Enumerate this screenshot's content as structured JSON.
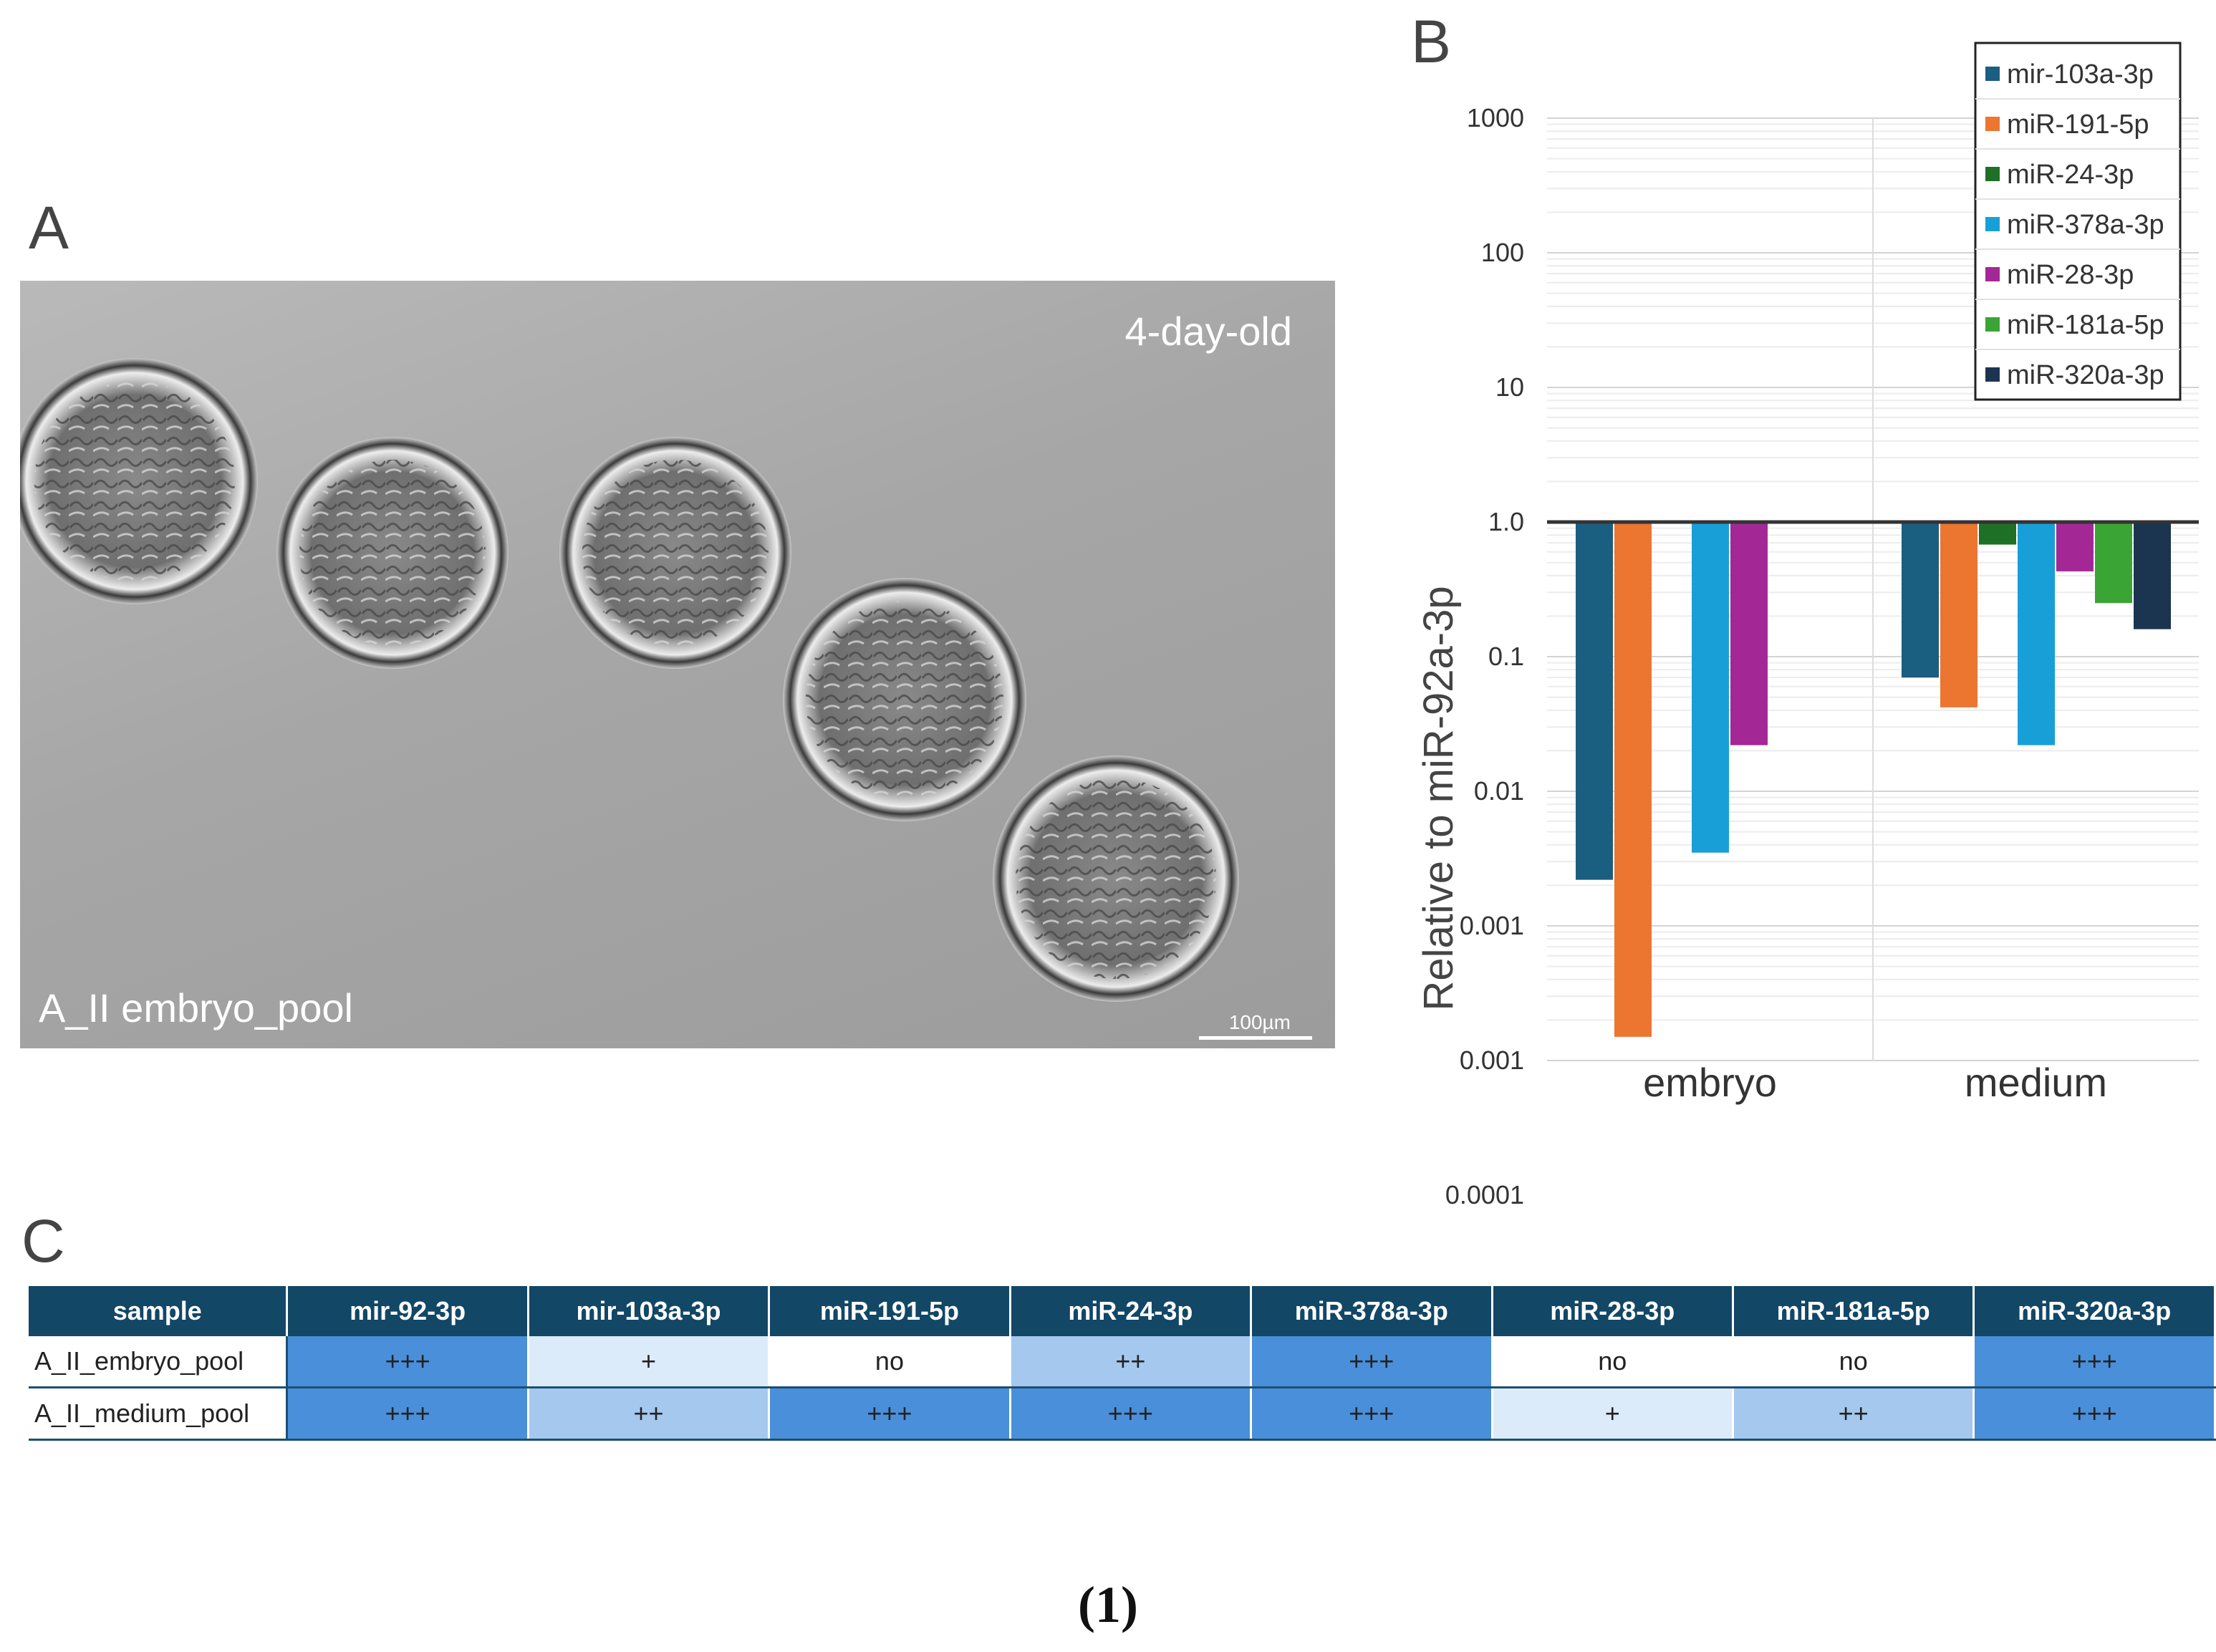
{
  "panels": {
    "a_letter": "A",
    "b_letter": "B",
    "c_letter": "C"
  },
  "micrograph": {
    "stage_label": "4-day-old",
    "sample_label": "A_II embryo_pool",
    "scale_label": "100µm"
  },
  "chart_data": {
    "type": "bar",
    "title": "",
    "xlabel": "",
    "ylabel": "Relative to miR-92a-3p",
    "yscale": "log",
    "baseline": 1.0,
    "categories": [
      "embryo",
      "medium"
    ],
    "ytick_labels": [
      "1000",
      "100",
      "10",
      "1.0",
      "0.1",
      "0.01",
      "0.001",
      "0.001",
      "0.0001"
    ],
    "ylim_decades": [
      -4,
      3
    ],
    "legend_position": "top-right",
    "series": [
      {
        "name": "mir-103a-3p",
        "color": "#1a5e80",
        "values": [
          0.0022,
          0.07
        ]
      },
      {
        "name": "miR-191-5p",
        "color": "#ec7530",
        "values": [
          0.00015,
          0.042
        ]
      },
      {
        "name": "miR-24-3p",
        "color": "#1e7026",
        "values": [
          null,
          0.68
        ]
      },
      {
        "name": "miR-378a-3p",
        "color": "#189fd8",
        "values": [
          0.0035,
          0.022
        ]
      },
      {
        "name": "miR-28-3p",
        "color": "#a32896",
        "values": [
          0.022,
          0.43
        ]
      },
      {
        "name": "miR-181a-5p",
        "color": "#3aa534",
        "values": [
          null,
          0.25
        ]
      },
      {
        "name": "miR-320a-3p",
        "color": "#1b3550",
        "values": [
          null,
          0.16
        ]
      }
    ]
  },
  "table": {
    "headers": [
      "sample",
      "mir-92-3p",
      "mir-103a-3p",
      "miR-191-5p",
      "miR-24-3p",
      "miR-378a-3p",
      "miR-28-3p",
      "miR-181a-5p",
      "miR-320a-3p"
    ],
    "rows": [
      [
        "A_II_embryo_pool",
        "+++",
        "+",
        "no",
        "++",
        "+++",
        "no",
        "no",
        "+++"
      ],
      [
        "A_II_medium_pool",
        "+++",
        "++",
        "+++",
        "+++",
        "+++",
        "+",
        "++",
        "+++"
      ]
    ],
    "level_colors": {
      "+++": "#4a8fd9",
      "++": "#a5c8ee",
      "+": "#dcebf9",
      "no": "#ffffff"
    }
  },
  "figure_label": "(1)"
}
